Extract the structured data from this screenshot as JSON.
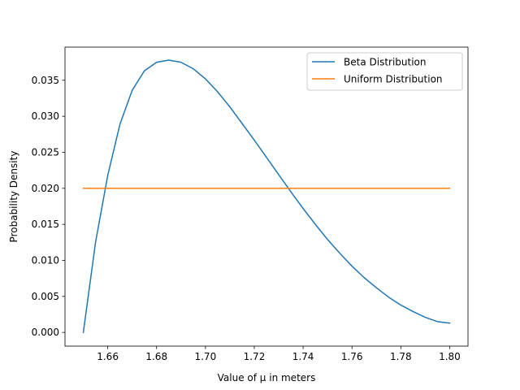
{
  "chart_data": {
    "type": "line",
    "xlabel": "Value of μ in meters",
    "ylabel": "Probability Density",
    "xlim": [
      1.6425,
      1.8075
    ],
    "ylim": [
      -0.0019,
      0.0396
    ],
    "xticks": [
      "1.66",
      "1.68",
      "1.70",
      "1.72",
      "1.74",
      "1.76",
      "1.78",
      "1.80"
    ],
    "yticks": [
      "0.000",
      "0.005",
      "0.010",
      "0.015",
      "0.020",
      "0.025",
      "0.030",
      "0.035"
    ],
    "grid": false,
    "legend_position": "top-right",
    "series": [
      {
        "name": "Beta Distribution",
        "color": "#1f77b4",
        "x": [
          1.65,
          1.655,
          1.66,
          1.665,
          1.67,
          1.675,
          1.68,
          1.685,
          1.69,
          1.695,
          1.7,
          1.705,
          1.71,
          1.715,
          1.72,
          1.725,
          1.73,
          1.735,
          1.74,
          1.745,
          1.75,
          1.755,
          1.76,
          1.765,
          1.77,
          1.775,
          1.78,
          1.785,
          1.79,
          1.795,
          1.8
        ],
        "y": [
          0.0,
          0.0125,
          0.0218,
          0.0289,
          0.0336,
          0.0363,
          0.0375,
          0.0378,
          0.0375,
          0.0366,
          0.0352,
          0.0334,
          0.0313,
          0.029,
          0.0267,
          0.0243,
          0.0219,
          0.0195,
          0.0172,
          0.015,
          0.0129,
          0.011,
          0.0092,
          0.0076,
          0.0062,
          0.0049,
          0.0038,
          0.0029,
          0.0021,
          0.0015,
          0.0013
        ]
      },
      {
        "name": "Uniform Distribution",
        "color": "#ff7f0e",
        "x": [
          1.65,
          1.8
        ],
        "y": [
          0.02,
          0.02
        ]
      }
    ]
  }
}
